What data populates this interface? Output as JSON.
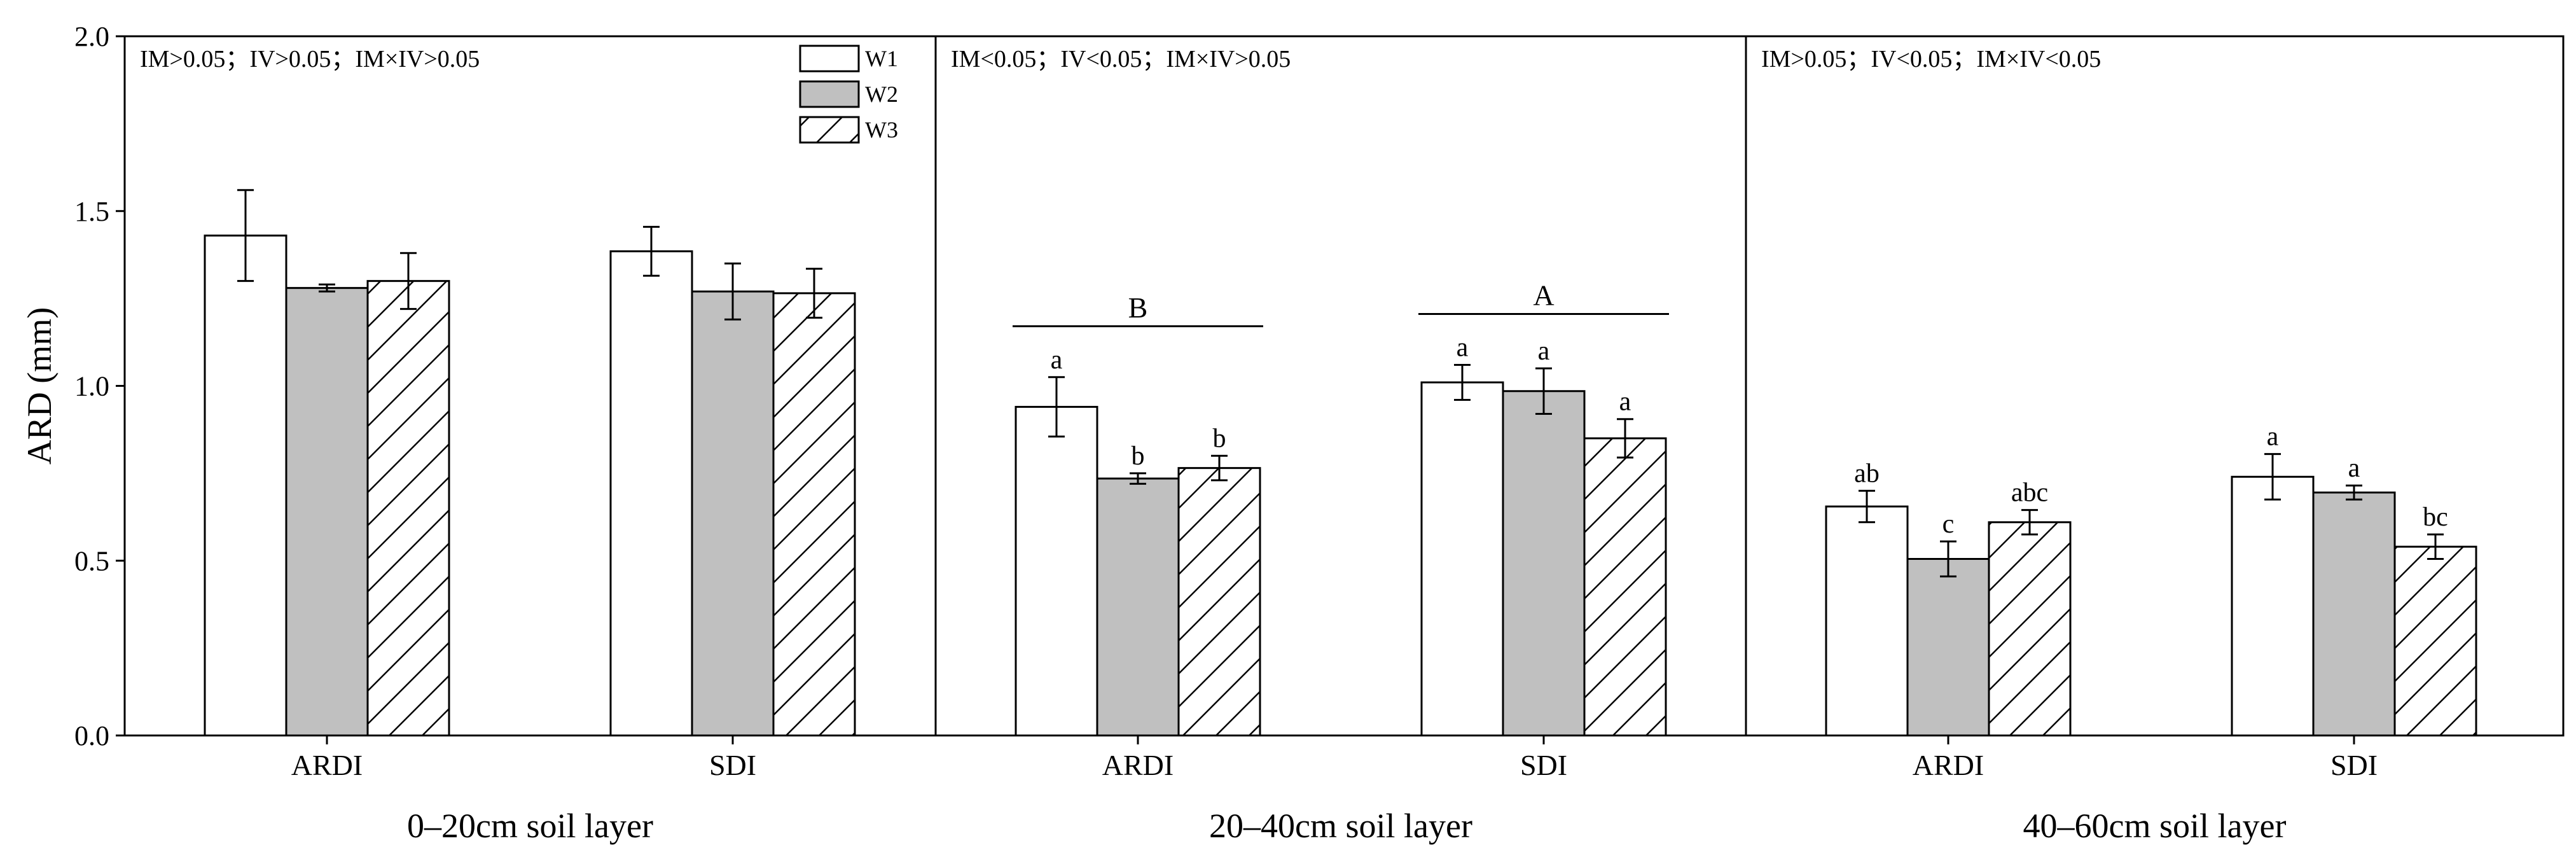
{
  "chart_data": {
    "type": "bar",
    "ylabel": "ARD (mm)",
    "ylim": [
      0,
      2.0
    ],
    "yticks": [
      "0.0",
      "0.5",
      "1.0",
      "1.5",
      "2.0"
    ],
    "series_names": [
      "W1",
      "W2",
      "W3"
    ],
    "colors": {
      "W1": "#ffffff",
      "W2": "#c0c0c0",
      "W3": "#ffffff"
    },
    "patterns": {
      "W1": "none",
      "W2": "none",
      "W3": "diagonal-hatch"
    },
    "legend_position": "top-right of first panel",
    "panels": [
      {
        "layer": "0–20cm soil layer",
        "stats": "IM>0.05；IV>0.05；IM×IV>0.05",
        "groups": [
          {
            "category": "ARDI",
            "values": [
              1.43,
              1.28,
              1.3
            ],
            "errors": [
              0.13,
              0.01,
              0.08
            ],
            "letters": [
              "",
              "",
              ""
            ],
            "group_letter": ""
          },
          {
            "category": "SDI",
            "values": [
              1.385,
              1.27,
              1.265
            ],
            "errors": [
              0.07,
              0.08,
              0.07
            ],
            "letters": [
              "",
              "",
              ""
            ],
            "group_letter": ""
          }
        ]
      },
      {
        "layer": "20–40cm soil layer",
        "stats": "IM<0.05；IV<0.05；IM×IV>0.05",
        "groups": [
          {
            "category": "ARDI",
            "values": [
              0.94,
              0.735,
              0.765
            ],
            "errors": [
              0.085,
              0.015,
              0.035
            ],
            "letters": [
              "a",
              "b",
              "b"
            ],
            "group_letter": "B"
          },
          {
            "category": "SDI",
            "values": [
              1.01,
              0.985,
              0.85
            ],
            "errors": [
              0.05,
              0.065,
              0.055
            ],
            "letters": [
              "a",
              "a",
              "a"
            ],
            "group_letter": "A"
          }
        ]
      },
      {
        "layer": "40–60cm soil layer",
        "stats": "IM>0.05；IV<0.05；IM×IV<0.05",
        "groups": [
          {
            "category": "ARDI",
            "values": [
              0.655,
              0.505,
              0.61
            ],
            "errors": [
              0.045,
              0.05,
              0.035
            ],
            "letters": [
              "ab",
              "c",
              "abc"
            ],
            "group_letter": ""
          },
          {
            "category": "SDI",
            "values": [
              0.74,
              0.695,
              0.54
            ],
            "errors": [
              0.065,
              0.02,
              0.035
            ],
            "letters": [
              "a",
              "a",
              "bc"
            ],
            "group_letter": ""
          }
        ]
      }
    ]
  }
}
